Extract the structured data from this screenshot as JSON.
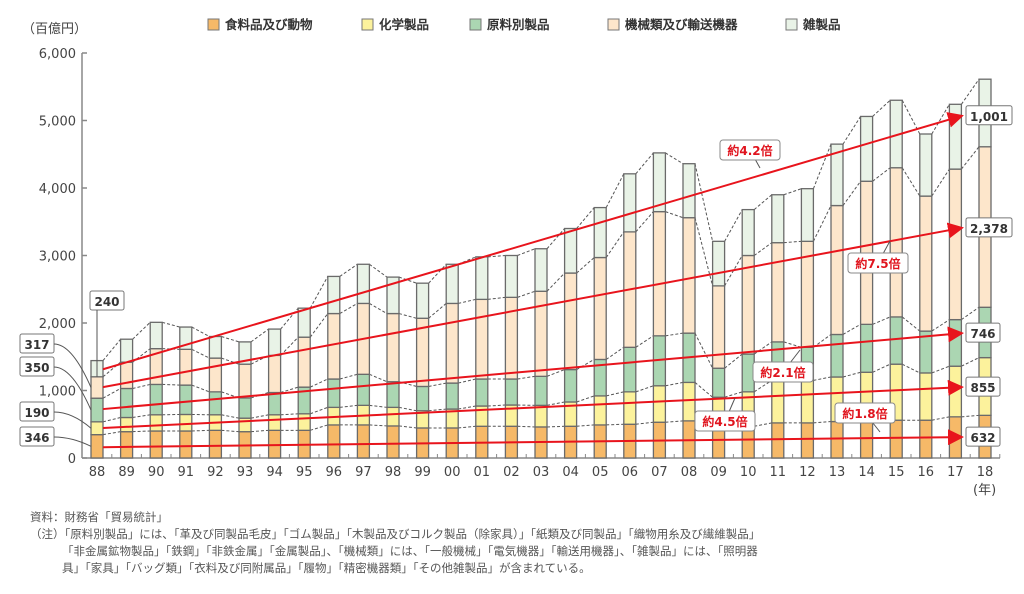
{
  "chart_data": {
    "type": "bar",
    "stacked": true,
    "unit_label": "（百億円）",
    "x_unit_label": "(年)",
    "ylim": [
      0,
      6000
    ],
    "yticks": [
      "0",
      "1,000",
      "2,000",
      "3,000",
      "4,000",
      "5,000",
      "6,000"
    ],
    "ytick_values": [
      0,
      1000,
      2000,
      3000,
      4000,
      5000,
      6000
    ],
    "categories": [
      "88",
      "89",
      "90",
      "91",
      "92",
      "93",
      "94",
      "95",
      "96",
      "97",
      "98",
      "99",
      "00",
      "01",
      "02",
      "03",
      "04",
      "05",
      "06",
      "07",
      "08",
      "09",
      "10",
      "11",
      "12",
      "13",
      "14",
      "15",
      "16",
      "17",
      "18"
    ],
    "series": [
      {
        "name": "食料品及び動物",
        "color": "#f6b968",
        "values": [
          346,
          390,
          400,
          400,
          410,
          390,
          410,
          410,
          490,
          490,
          475,
          445,
          445,
          470,
          470,
          460,
          470,
          490,
          500,
          530,
          550,
          460,
          470,
          520,
          520,
          540,
          550,
          560,
          560,
          610,
          632
        ]
      },
      {
        "name": "化学製品",
        "color": "#fcf29c",
        "values": [
          190,
          210,
          240,
          245,
          230,
          200,
          230,
          245,
          260,
          290,
          275,
          255,
          280,
          300,
          315,
          320,
          360,
          430,
          480,
          540,
          570,
          440,
          510,
          630,
          630,
          660,
          720,
          830,
          700,
          750,
          855
        ]
      },
      {
        "name": "原料別製品",
        "color": "#abd6b2",
        "values": [
          350,
          430,
          450,
          435,
          340,
          300,
          330,
          395,
          420,
          460,
          380,
          360,
          385,
          400,
          385,
          430,
          480,
          540,
          660,
          740,
          730,
          430,
          560,
          570,
          490,
          630,
          710,
          700,
          620,
          690,
          746
        ]
      },
      {
        "name": "機械類及び輸送機器",
        "color": "#fde6cb",
        "values": [
          317,
          390,
          530,
          530,
          500,
          500,
          550,
          740,
          970,
          1050,
          1010,
          1010,
          1180,
          1180,
          1210,
          1260,
          1430,
          1510,
          1710,
          1840,
          1710,
          1220,
          1460,
          1470,
          1570,
          1910,
          2120,
          2210,
          2000,
          2230,
          2378
        ]
      },
      {
        "name": "雑製品",
        "color": "#e9f3e7",
        "values": [
          240,
          340,
          390,
          330,
          320,
          330,
          390,
          430,
          550,
          580,
          540,
          520,
          580,
          630,
          620,
          630,
          660,
          740,
          860,
          870,
          800,
          660,
          680,
          710,
          780,
          910,
          960,
          1000,
          920,
          960,
          1001
        ]
      }
    ],
    "start_labels": [
      "240",
      "317",
      "350",
      "190",
      "346"
    ],
    "end_labels": [
      "1,001",
      "2,378",
      "746",
      "855",
      "632"
    ],
    "growth_arrows": [
      {
        "series": "雑製品",
        "label": "約4.2倍",
        "from_value": 1315,
        "to_value": 5070
      },
      {
        "series": "機械類及び輸送機器",
        "label": "約7.5倍",
        "from_value": 1050,
        "to_value": 3410
      },
      {
        "series": "原料別製品",
        "label": "約2.1倍",
        "from_value": 725,
        "to_value": 1850
      },
      {
        "series": "化学製品",
        "label": "約4.5倍",
        "from_value": 445,
        "to_value": 1050
      },
      {
        "series": "食料品及び動物",
        "label": "約1.8倍",
        "from_value": 160,
        "to_value": 310
      }
    ],
    "arrow_color": "#e8141c"
  },
  "footnotes": {
    "source": "資料：財務省「貿易統計」",
    "note_lines": [
      "（注）「原料別製品」には、「革及び同製品毛皮」「ゴム製品」「木製品及びコルク製品（除家具）」「紙類及び同製品」「織物用糸及び繊維製品」",
      "「非金属鉱物製品」「鉄鋼」「非鉄金属」「金属製品」、「機械類」には、「一般機械」「電気機器」「輸送用機器」、「雑製品」には、「照明器",
      "具」「家具」「バッグ類」「衣料及び同附属品」「履物」「精密機器類」「その他雑製品」が含まれている。"
    ]
  }
}
